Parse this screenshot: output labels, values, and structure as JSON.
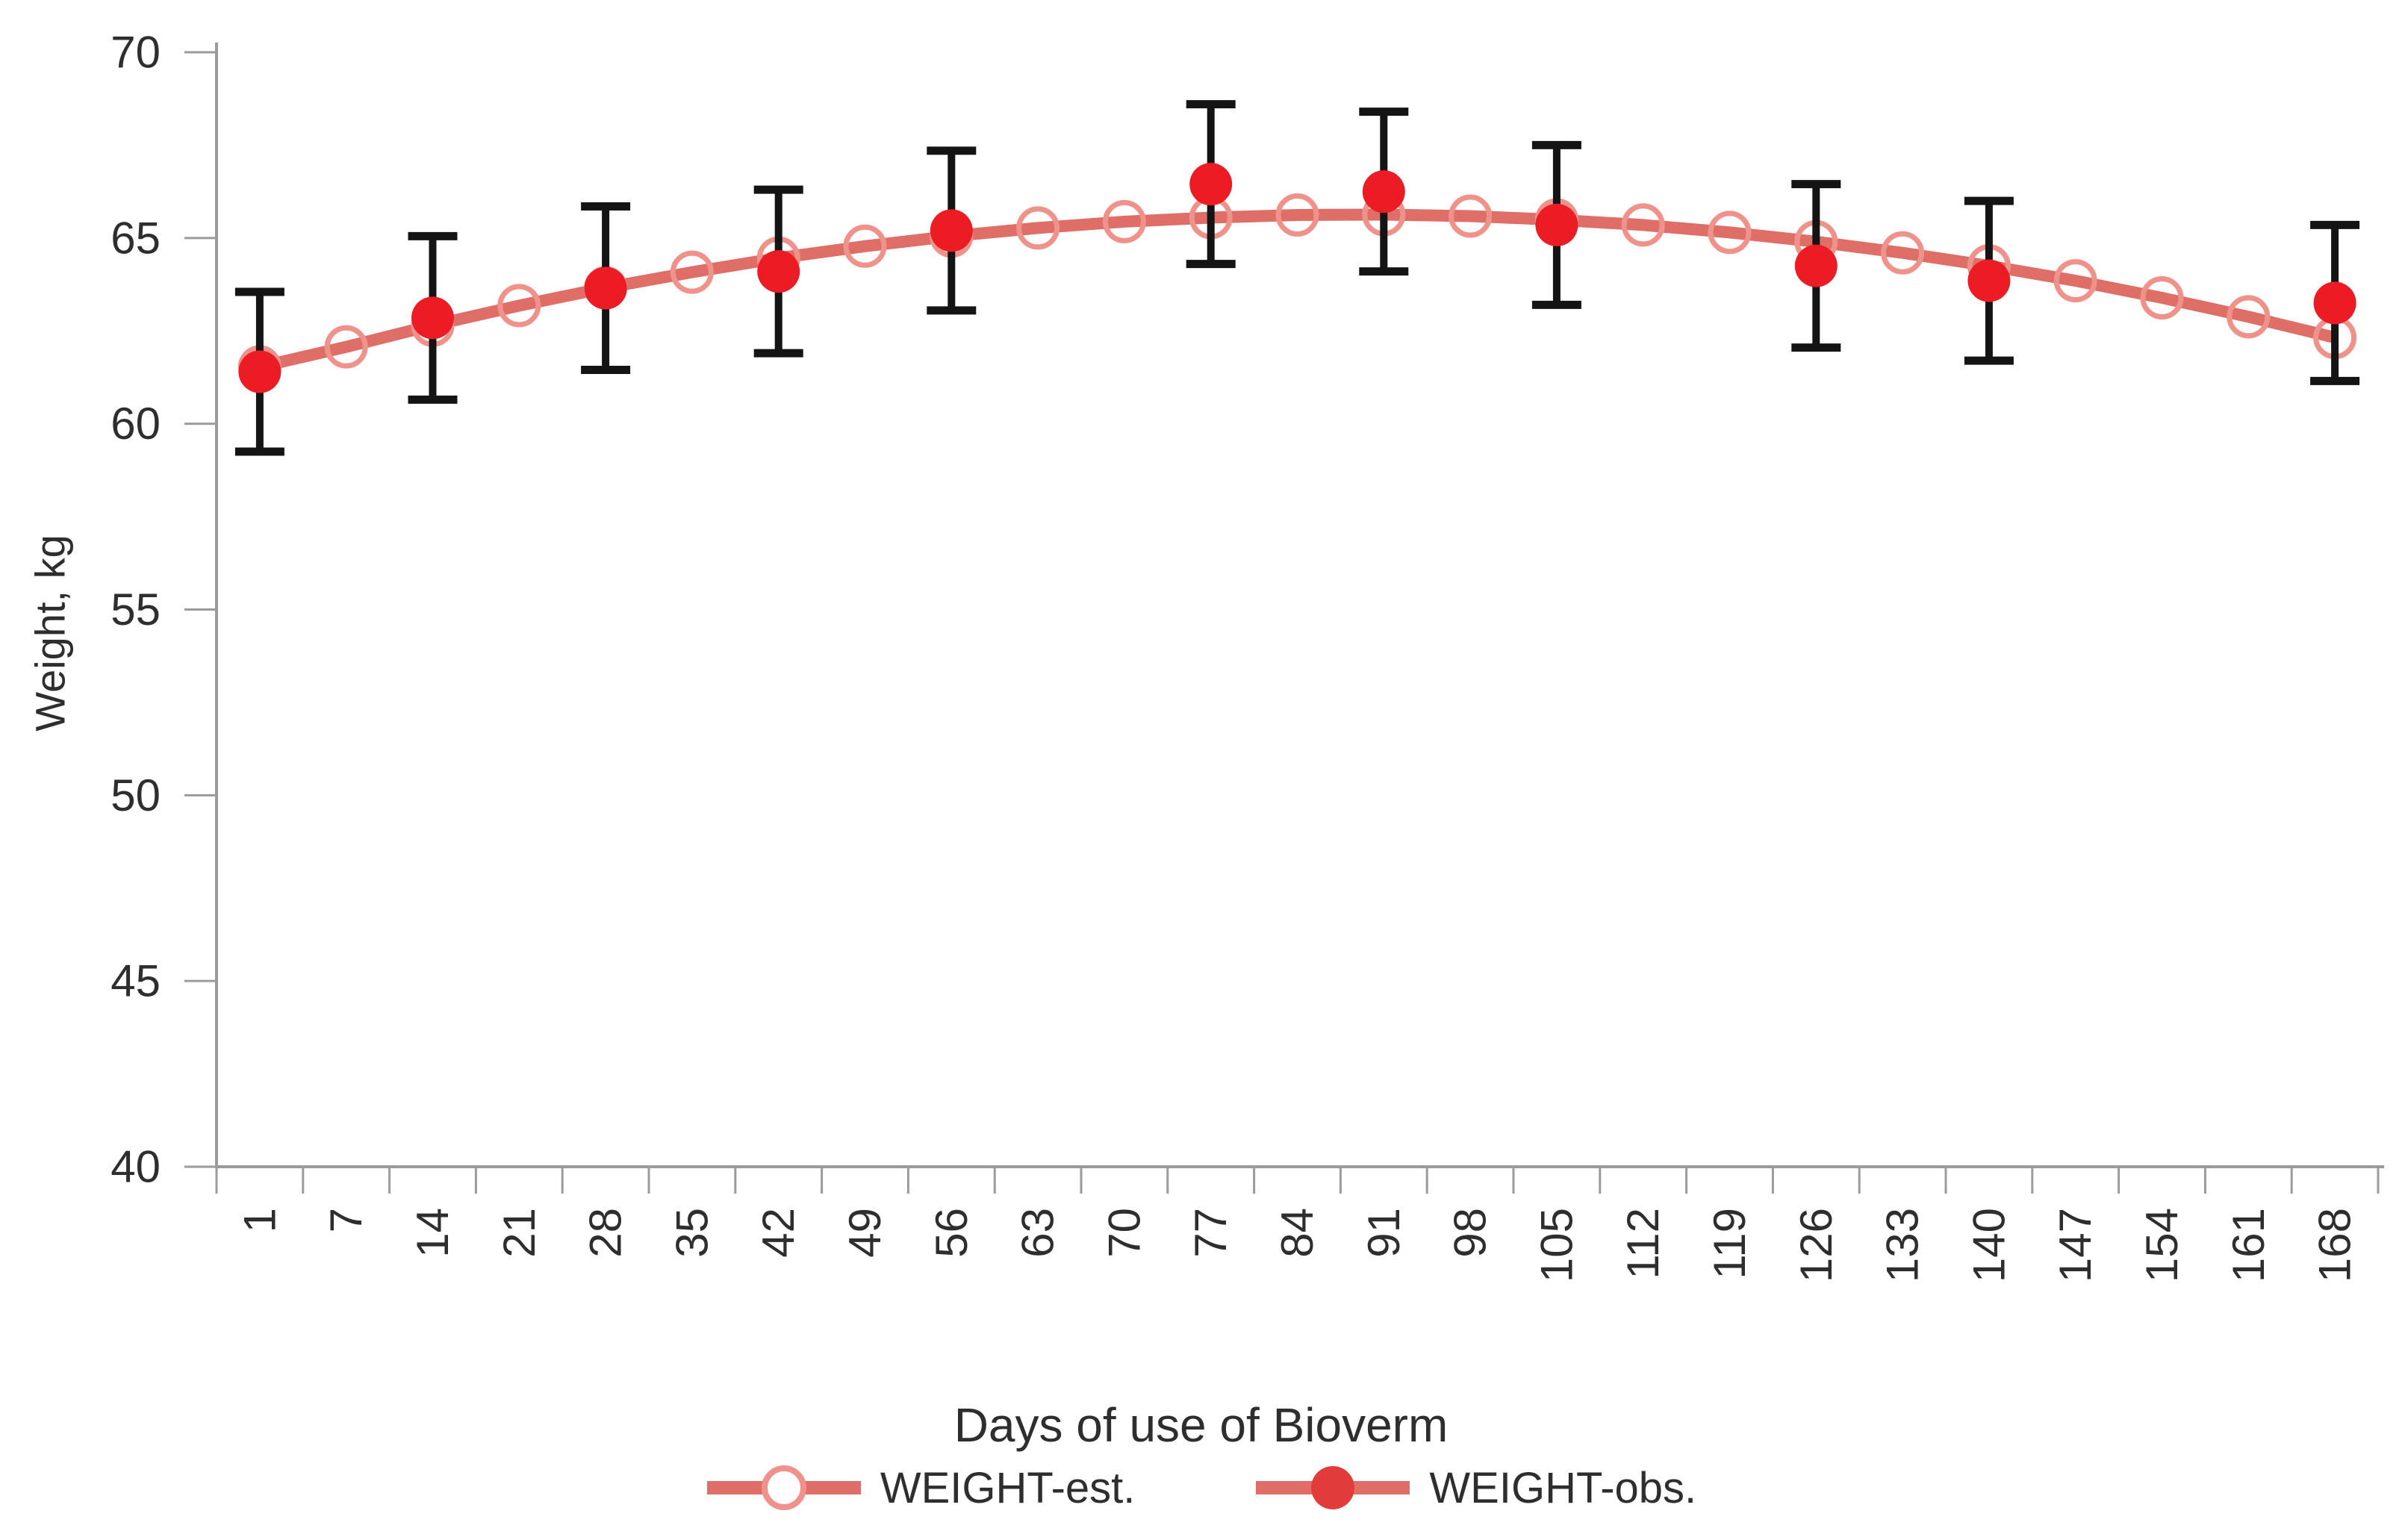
{
  "chart_data": {
    "type": "line",
    "title": "",
    "xlabel": "Days of use of Bioverm",
    "ylabel": "Weight, kg",
    "ylim": [
      40,
      70
    ],
    "yticks": [
      70,
      65,
      60,
      55,
      50,
      45,
      40
    ],
    "grid": false,
    "legend_position": "bottom",
    "categories": [
      1,
      7,
      14,
      21,
      28,
      35,
      42,
      49,
      56,
      63,
      70,
      77,
      84,
      91,
      98,
      105,
      112,
      119,
      126,
      133,
      140,
      147,
      154,
      161,
      168
    ],
    "series": [
      {
        "name": "WEIGHT-est.",
        "marker": "open-circle",
        "days": [
          1,
          7,
          14,
          21,
          28,
          35,
          42,
          49,
          56,
          63,
          70,
          77,
          84,
          91,
          98,
          105,
          112,
          119,
          126,
          133,
          140,
          147,
          154,
          161,
          168
        ],
        "values": [
          61.53,
          62.07,
          62.65,
          63.18,
          63.66,
          64.08,
          64.46,
          64.78,
          65.05,
          65.27,
          65.44,
          65.55,
          65.62,
          65.63,
          65.59,
          65.49,
          65.35,
          65.15,
          64.9,
          64.6,
          64.25,
          63.85,
          63.39,
          62.88,
          62.32
        ]
      },
      {
        "name": "WEIGHT-obs.",
        "marker": "filled-circle",
        "days": [
          1,
          14,
          28,
          42,
          56,
          77,
          91,
          105,
          126,
          140,
          168
        ],
        "values": [
          61.4,
          62.85,
          63.65,
          64.1,
          65.2,
          66.45,
          66.25,
          65.35,
          64.25,
          63.85,
          63.25
        ],
        "error": [
          2.15,
          2.2,
          2.2,
          2.2,
          2.15,
          2.15,
          2.15,
          2.15,
          2.2,
          2.15,
          2.1
        ]
      }
    ]
  },
  "legend": {
    "est_label": "WEIGHT-est.",
    "obs_label": "WEIGHT-obs."
  },
  "colors": {
    "obs_dot": "#ec1c24",
    "est_line": "#df6e67",
    "est_circle_stroke": "#ef928c",
    "error_bar": "#141414",
    "axis": "#9b9b9b",
    "text": "#2e2e2e"
  }
}
